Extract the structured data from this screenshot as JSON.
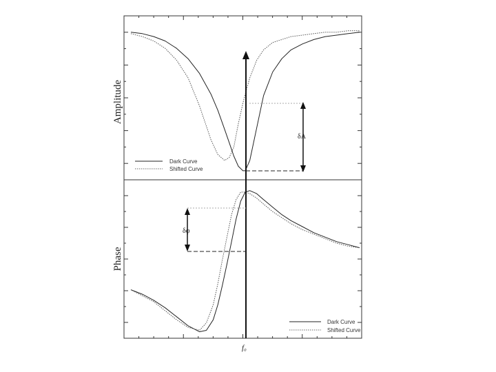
{
  "chart_data": [
    {
      "type": "line",
      "panel": "top",
      "ylabel": "Amplitude",
      "xlabel": "",
      "grid": false,
      "legend_placement": "bottom-left",
      "x": [
        0.0,
        0.05,
        0.1,
        0.15,
        0.2,
        0.25,
        0.3,
        0.35,
        0.38,
        0.41,
        0.43,
        0.45,
        0.47,
        0.49,
        0.5,
        0.52,
        0.55,
        0.58,
        0.62,
        0.66,
        0.7,
        0.75,
        0.8,
        0.85,
        0.9,
        0.95,
        1.0
      ],
      "series": [
        {
          "name": "Dark Curve",
          "style": "solid",
          "color": "#222222",
          "values": [
            0.95,
            0.94,
            0.92,
            0.89,
            0.84,
            0.77,
            0.67,
            0.53,
            0.42,
            0.29,
            0.2,
            0.11,
            0.04,
            0.01,
            0.01,
            0.08,
            0.3,
            0.52,
            0.68,
            0.77,
            0.83,
            0.87,
            0.9,
            0.92,
            0.93,
            0.94,
            0.95
          ]
        },
        {
          "name": "Shifted Curve",
          "style": "dotted",
          "color": "#555555",
          "values": [
            0.94,
            0.92,
            0.89,
            0.84,
            0.76,
            0.64,
            0.45,
            0.22,
            0.12,
            0.08,
            0.1,
            0.17,
            0.33,
            0.47,
            0.53,
            0.64,
            0.76,
            0.83,
            0.88,
            0.9,
            0.92,
            0.93,
            0.94,
            0.95,
            0.95,
            0.96,
            0.96
          ]
        }
      ],
      "annotations": [
        {
          "text": "δA"
        }
      ]
    },
    {
      "type": "line",
      "panel": "bottom",
      "ylabel": "Phase",
      "xlabel": "f₀",
      "grid": false,
      "legend_placement": "bottom-right",
      "x": [
        0.0,
        0.05,
        0.1,
        0.15,
        0.2,
        0.25,
        0.3,
        0.33,
        0.36,
        0.38,
        0.4,
        0.42,
        0.44,
        0.46,
        0.48,
        0.5,
        0.52,
        0.55,
        0.58,
        0.62,
        0.66,
        0.7,
        0.75,
        0.8,
        0.85,
        0.9,
        0.95,
        1.0
      ],
      "series": [
        {
          "name": "Dark Curve",
          "style": "solid",
          "color": "#222222",
          "values": [
            0.3,
            0.27,
            0.23,
            0.18,
            0.12,
            0.06,
            0.02,
            0.03,
            0.1,
            0.2,
            0.33,
            0.47,
            0.62,
            0.77,
            0.89,
            0.95,
            0.96,
            0.94,
            0.9,
            0.85,
            0.8,
            0.76,
            0.72,
            0.68,
            0.65,
            0.62,
            0.6,
            0.58
          ]
        },
        {
          "name": "Shifted Curve",
          "style": "dotted",
          "color": "#555555",
          "values": [
            0.3,
            0.26,
            0.22,
            0.16,
            0.1,
            0.05,
            0.03,
            0.08,
            0.2,
            0.34,
            0.5,
            0.65,
            0.8,
            0.9,
            0.95,
            0.95,
            0.94,
            0.91,
            0.87,
            0.82,
            0.78,
            0.74,
            0.7,
            0.67,
            0.64,
            0.61,
            0.59,
            0.58
          ]
        }
      ],
      "annotations": [
        {
          "text": "δφ"
        }
      ]
    }
  ],
  "labels": {
    "amplitude_axis": "Amplitude",
    "phase_axis": "Phase",
    "f0": "f₀",
    "delta_a": "δA",
    "delta_phi": "δφ"
  },
  "legend_top": {
    "dark": "Dark Curve",
    "shifted": "Shifted Curve"
  },
  "legend_bottom": {
    "dark": "Dark Curve",
    "shifted": "Shifted Curve"
  }
}
